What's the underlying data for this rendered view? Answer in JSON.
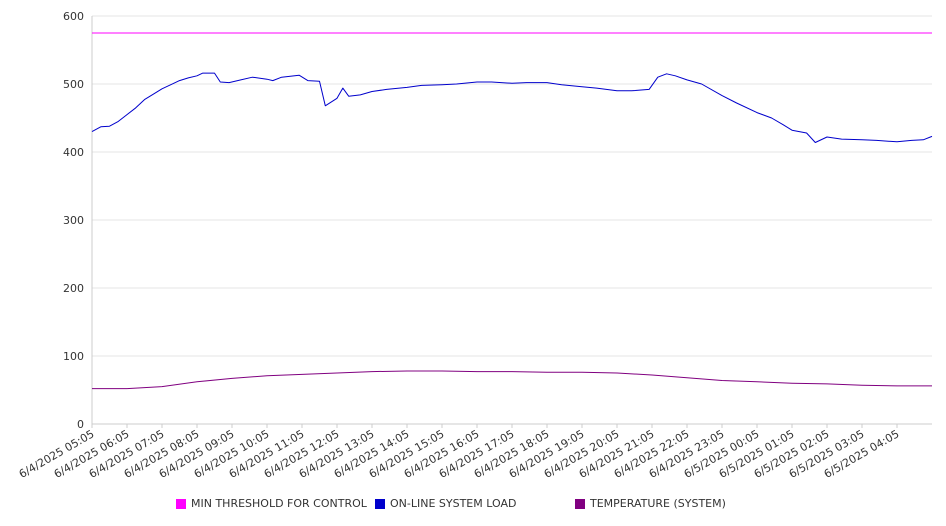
{
  "chart_data": {
    "type": "line",
    "title": "",
    "xlabel": "",
    "ylabel": "",
    "ylim": [
      0,
      600
    ],
    "y_ticks": [
      0,
      100,
      200,
      300,
      400,
      500,
      600
    ],
    "grid": "horizontal",
    "legend_position": "bottom",
    "x_ticks": [
      "6/4/2025 05:05",
      "6/4/2025 06:05",
      "6/4/2025 07:05",
      "6/4/2025 08:05",
      "6/4/2025 09:05",
      "6/4/2025 10:05",
      "6/4/2025 11:05",
      "6/4/2025 12:05",
      "6/4/2025 13:05",
      "6/4/2025 14:05",
      "6/4/2025 15:05",
      "6/4/2025 16:05",
      "6/4/2025 17:05",
      "6/4/2025 18:05",
      "6/4/2025 19:05",
      "6/4/2025 20:05",
      "6/4/2025 21:05",
      "6/4/2025 22:05",
      "6/4/2025 23:05",
      "6/5/2025 00:05",
      "6/5/2025 01:05",
      "6/5/2025 02:05",
      "6/5/2025 03:05",
      "6/5/2025 04:05"
    ],
    "x_range": [
      "6/4/2025 05:05",
      "6/5/2025 05:05"
    ],
    "series": [
      {
        "name": "MIN THRESHOLD FOR CONTROL",
        "color": "#ff00ff",
        "points": [
          [
            "6/4/2025 05:05",
            575
          ],
          [
            "6/5/2025 05:05",
            575
          ]
        ]
      },
      {
        "name": "ON-LINE SYSTEM LOAD",
        "color": "#0000cc",
        "points": [
          [
            "6/4/2025 05:05",
            430
          ],
          [
            "6/4/2025 05:20",
            437
          ],
          [
            "6/4/2025 05:35",
            438
          ],
          [
            "6/4/2025 05:50",
            445
          ],
          [
            "6/4/2025 06:05",
            455
          ],
          [
            "6/4/2025 06:20",
            465
          ],
          [
            "6/4/2025 06:35",
            477
          ],
          [
            "6/4/2025 06:50",
            485
          ],
          [
            "6/4/2025 07:05",
            493
          ],
          [
            "6/4/2025 07:20",
            499
          ],
          [
            "6/4/2025 07:35",
            505
          ],
          [
            "6/4/2025 07:50",
            509
          ],
          [
            "6/4/2025 08:05",
            512
          ],
          [
            "6/4/2025 08:15",
            516
          ],
          [
            "6/4/2025 08:35",
            516
          ],
          [
            "6/4/2025 08:45",
            503
          ],
          [
            "6/4/2025 09:00",
            502
          ],
          [
            "6/4/2025 09:20",
            506
          ],
          [
            "6/4/2025 09:40",
            510
          ],
          [
            "6/4/2025 10:05",
            507
          ],
          [
            "6/4/2025 10:15",
            505
          ],
          [
            "6/4/2025 10:30",
            510
          ],
          [
            "6/4/2025 11:00",
            513
          ],
          [
            "6/4/2025 11:15",
            505
          ],
          [
            "6/4/2025 11:35",
            504
          ],
          [
            "6/4/2025 11:45",
            468
          ],
          [
            "6/4/2025 12:05",
            479
          ],
          [
            "6/4/2025 12:15",
            494
          ],
          [
            "6/4/2025 12:25",
            482
          ],
          [
            "6/4/2025 12:45",
            484
          ],
          [
            "6/4/2025 13:05",
            489
          ],
          [
            "6/4/2025 13:30",
            492
          ],
          [
            "6/4/2025 14:05",
            495
          ],
          [
            "6/4/2025 14:30",
            498
          ],
          [
            "6/4/2025 15:05",
            499
          ],
          [
            "6/4/2025 15:30",
            500
          ],
          [
            "6/4/2025 16:05",
            503
          ],
          [
            "6/4/2025 16:30",
            503
          ],
          [
            "6/4/2025 17:05",
            501
          ],
          [
            "6/4/2025 17:30",
            502
          ],
          [
            "6/4/2025 18:05",
            502
          ],
          [
            "6/4/2025 18:30",
            499
          ],
          [
            "6/4/2025 19:05",
            496
          ],
          [
            "6/4/2025 19:30",
            494
          ],
          [
            "6/4/2025 20:05",
            490
          ],
          [
            "6/4/2025 20:30",
            490
          ],
          [
            "6/4/2025 21:00",
            492
          ],
          [
            "6/4/2025 21:15",
            510
          ],
          [
            "6/4/2025 21:30",
            515
          ],
          [
            "6/4/2025 21:45",
            512
          ],
          [
            "6/4/2025 22:05",
            506
          ],
          [
            "6/4/2025 22:30",
            500
          ],
          [
            "6/4/2025 23:05",
            483
          ],
          [
            "6/4/2025 23:30",
            472
          ],
          [
            "6/5/2025 00:05",
            458
          ],
          [
            "6/5/2025 00:30",
            450
          ],
          [
            "6/5/2025 00:50",
            440
          ],
          [
            "6/5/2025 01:05",
            432
          ],
          [
            "6/5/2025 01:30",
            428
          ],
          [
            "6/5/2025 01:45",
            414
          ],
          [
            "6/5/2025 02:05",
            422
          ],
          [
            "6/5/2025 02:30",
            419
          ],
          [
            "6/5/2025 03:05",
            418
          ],
          [
            "6/5/2025 03:30",
            417
          ],
          [
            "6/5/2025 04:05",
            415
          ],
          [
            "6/5/2025 04:30",
            417
          ],
          [
            "6/5/2025 04:50",
            418
          ],
          [
            "6/5/2025 05:05",
            423
          ]
        ]
      },
      {
        "name": "TEMPERATURE (SYSTEM)",
        "color": "#800080",
        "points": [
          [
            "6/4/2025 05:05",
            52
          ],
          [
            "6/4/2025 06:05",
            52
          ],
          [
            "6/4/2025 07:05",
            55
          ],
          [
            "6/4/2025 08:05",
            62
          ],
          [
            "6/4/2025 09:05",
            67
          ],
          [
            "6/4/2025 10:05",
            71
          ],
          [
            "6/4/2025 11:05",
            73
          ],
          [
            "6/4/2025 12:05",
            75
          ],
          [
            "6/4/2025 13:05",
            77
          ],
          [
            "6/4/2025 14:05",
            78
          ],
          [
            "6/4/2025 15:05",
            78
          ],
          [
            "6/4/2025 16:05",
            77
          ],
          [
            "6/4/2025 17:05",
            77
          ],
          [
            "6/4/2025 18:05",
            76
          ],
          [
            "6/4/2025 19:05",
            76
          ],
          [
            "6/4/2025 20:05",
            75
          ],
          [
            "6/4/2025 21:05",
            72
          ],
          [
            "6/4/2025 22:05",
            68
          ],
          [
            "6/4/2025 23:05",
            64
          ],
          [
            "6/5/2025 00:05",
            62
          ],
          [
            "6/5/2025 01:05",
            60
          ],
          [
            "6/5/2025 02:05",
            59
          ],
          [
            "6/5/2025 03:05",
            57
          ],
          [
            "6/5/2025 04:05",
            56
          ],
          [
            "6/5/2025 05:05",
            56
          ]
        ]
      }
    ]
  }
}
